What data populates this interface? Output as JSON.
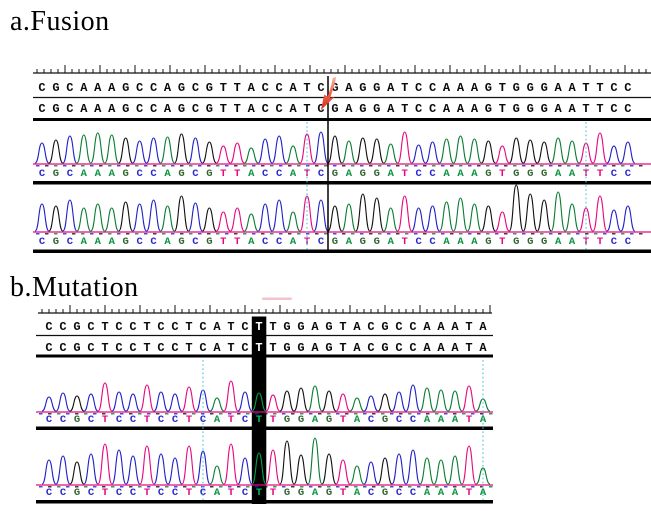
{
  "figure": {
    "type": "sanger-sequencing-chromatograms",
    "base_colors": {
      "A": "#0a7d32",
      "C": "#2021c6",
      "G": "#111111",
      "T": "#e5097f"
    },
    "letter_colors": {
      "A": "#0a9440",
      "C": "#2a2ad0",
      "G": "#336633",
      "T": "#e5097f"
    },
    "guide_color": "#45c6d6",
    "baseline_color": "#e5097f",
    "ruler_color": "#111111",
    "panels": [
      {
        "label": "a.Fusion",
        "alignment_rows": [
          "CGCAAAGCCAGCGTTACCATCGAGGATCCAAAGTGGGAATTCC",
          "CGCAAAGCCAGCGTTACCATCGAGGATCCAAAGTGGGAATTCC"
        ],
        "sequence": "CGCAAAGCCAGCGTTACCATCGAGGATCCAAAGTGGGAATTCC",
        "junction_after_base": 21,
        "marker": "red-arrow",
        "guide_base_indices": [
          19,
          39
        ],
        "traces": [
          {
            "name": "chromatogram-1",
            "heights": [
              20,
              23,
              27,
              28,
              30,
              28,
              25,
              22,
              25,
              26,
              29,
              25,
              21,
              17,
              20,
              15,
              24,
              27,
              17,
              29,
              31,
              27,
              22,
              25,
              24,
              19,
              31,
              18,
              21,
              24,
              27,
              24,
              22,
              17,
              25,
              23,
              21,
              25,
              22,
              20,
              30,
              17,
              21
            ]
          },
          {
            "name": "chromatogram-2",
            "heights": [
              27,
              25,
              31,
              23,
              27,
              23,
              29,
              27,
              31,
              25,
              35,
              28,
              23,
              19,
              23,
              17,
              27,
              31,
              19,
              35,
              31,
              25,
              27,
              37,
              33,
              23,
              35,
              23,
              25,
              29,
              33,
              27,
              25,
              19,
              46,
              37,
              31,
              39,
              27,
              23,
              35,
              21,
              25
            ]
          }
        ]
      },
      {
        "label": "b.Mutation",
        "alignment_rows": [
          "CCGCTCCTCCTCATCTTGGAGTACGCCAAATA",
          "CCGCTCCTCCTCATCTTGGAGTACGCCAAATA"
        ],
        "sequence": "CCGCTCCTCCTCATCTTGGAGTACGCCAAATA",
        "highlight": {
          "index": 15,
          "base": "T",
          "column_color": "#000000",
          "top_letter_color": "#ffffff",
          "trace_letter_color": "#00c060",
          "trace_peak_color": "#00a14b"
        },
        "marker": "pink-smudge",
        "guide_base_indices": [
          11,
          31
        ],
        "traces": [
          {
            "name": "chromatogram-1",
            "heights": [
              14,
              18,
              15,
              17,
              28,
              19,
              17,
              26,
              19,
              17,
              24,
              21,
              13,
              30,
              19,
              18,
              16,
              20,
              23,
              25,
              20,
              17,
              13,
              15,
              17,
              19,
              26,
              23,
              21,
              20,
              25,
              12
            ]
          },
          {
            "name": "chromatogram-2",
            "heights": [
              24,
              28,
              22,
              30,
              40,
              34,
              28,
              38,
              30,
              26,
              38,
              33,
              18,
              40,
              26,
              31,
              34,
              43,
              29,
              46,
              30,
              24,
              18,
              22,
              26,
              30,
              34,
              26,
              24,
              28,
              38,
              16
            ]
          }
        ]
      }
    ]
  }
}
